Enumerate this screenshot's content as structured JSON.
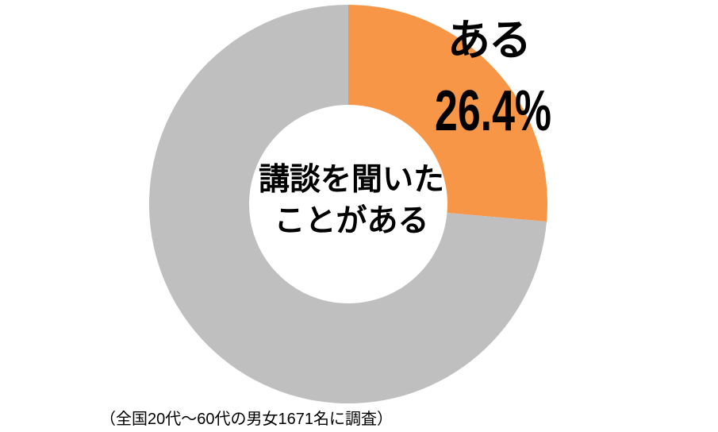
{
  "chart_data": {
    "type": "pie",
    "subtype": "donut",
    "start_angle_deg": 0,
    "direction": "clockwise",
    "hole_ratio": 0.5,
    "slices": [
      {
        "name": "ある",
        "value_pct": 26.4,
        "color": "#F79646"
      },
      {
        "name": "",
        "value_pct": 73.6,
        "color": "#BFBFBF"
      }
    ],
    "callout": {
      "label": "ある",
      "value": "26.4%"
    },
    "center_label": {
      "line1": "講談を聞いた",
      "line2": "ことがある"
    },
    "footnote": "（全国20代～60代の男女1671名に調査）",
    "legend": "none",
    "background": "#FFFFFF"
  },
  "colors": {
    "accent_orange": "#F79646",
    "muted_gray": "#BFBFBF",
    "text": "#000000",
    "background": "#FFFFFF"
  }
}
